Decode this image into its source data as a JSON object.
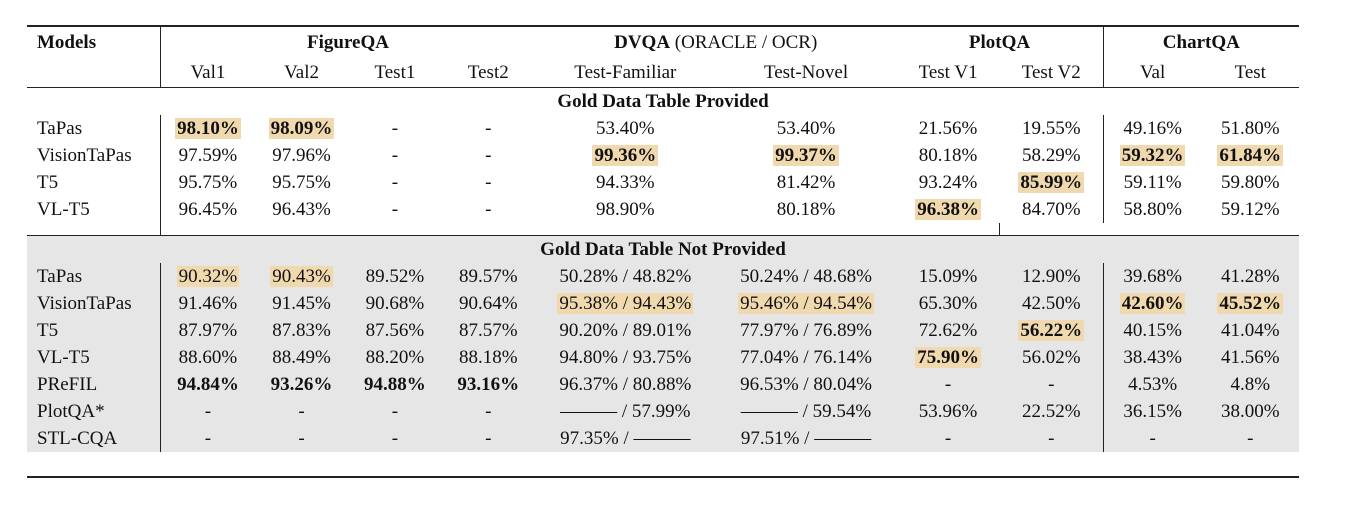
{
  "header": {
    "models": "Models",
    "groups": {
      "figureqa": "FigureQA",
      "dvqa": "DVQA",
      "dvqa_note": " (ORACLE / OCR)",
      "plotqa": "PlotQA",
      "chartqa": "ChartQA"
    },
    "subcols": [
      "Val1",
      "Val2",
      "Test1",
      "Test2",
      "Test-Familiar",
      "Test-Novel",
      "Test V1",
      "Test V2",
      "Val",
      "Test"
    ]
  },
  "sections": {
    "provided": "Gold Data Table Provided",
    "not_provided": "Gold Data Table Not Provided"
  },
  "rows_provided": [
    {
      "model": "TaPas",
      "cells": [
        "98.10%",
        "98.09%",
        "-",
        "-",
        "53.40%",
        "53.40%",
        "21.56%",
        "19.55%",
        "49.16%",
        "51.80%"
      ]
    },
    {
      "model": "VisionTaPas",
      "cells": [
        "97.59%",
        "97.96%",
        "-",
        "-",
        "99.36%",
        "99.37%",
        "80.18%",
        "58.29%",
        "59.32%",
        "61.84%"
      ]
    },
    {
      "model": "T5",
      "cells": [
        "95.75%",
        "95.75%",
        "-",
        "-",
        "94.33%",
        "81.42%",
        "93.24%",
        "85.99%",
        "59.11%",
        "59.80%"
      ]
    },
    {
      "model": "VL-T5",
      "cells": [
        "96.45%",
        "96.43%",
        "-",
        "-",
        "98.90%",
        "80.18%",
        "96.38%",
        "84.70%",
        "58.80%",
        "59.12%"
      ]
    }
  ],
  "rows_not_provided": [
    {
      "model": "TaPas",
      "cells": [
        "90.32%",
        "90.43%",
        "89.52%",
        "89.57%",
        "50.28% / 48.82%",
        "50.24% / 48.68%",
        "15.09%",
        "12.90%",
        "39.68%",
        "41.28%"
      ]
    },
    {
      "model": "VisionTaPas",
      "cells": [
        "91.46%",
        "91.45%",
        "90.68%",
        "90.64%",
        "95.38% / 94.43%",
        "95.46% / 94.54%",
        "65.30%",
        "42.50%",
        "42.60%",
        "45.52%"
      ]
    },
    {
      "model": "T5",
      "cells": [
        "87.97%",
        "87.83%",
        "87.56%",
        "87.57%",
        "90.20% / 89.01%",
        "77.97% / 76.89%",
        "72.62%",
        "56.22%",
        "40.15%",
        "41.04%"
      ]
    },
    {
      "model": "VL-T5",
      "cells": [
        "88.60%",
        "88.49%",
        "88.20%",
        "88.18%",
        "94.80% / 93.75%",
        "77.04% / 76.14%",
        "75.90%",
        "56.02%",
        "38.43%",
        "41.56%"
      ]
    },
    {
      "model": "PReFIL",
      "cells": [
        "94.84%",
        "93.26%",
        "94.88%",
        "93.16%",
        "96.37% / 80.88%",
        "96.53% / 80.04%",
        "-",
        "-",
        "4.53%",
        "4.8%"
      ]
    },
    {
      "model": "PlotQA*",
      "cells": [
        "-",
        "-",
        "-",
        "-",
        "——— / 57.99%",
        "——— / 59.54%",
        "53.96%",
        "22.52%",
        "36.15%",
        "38.00%"
      ]
    },
    {
      "model": "STL-CQA",
      "cells": [
        "-",
        "-",
        "-",
        "-",
        "97.35% / ———",
        "97.51% / ———",
        "-",
        "-",
        "-",
        "-"
      ]
    }
  ]
}
